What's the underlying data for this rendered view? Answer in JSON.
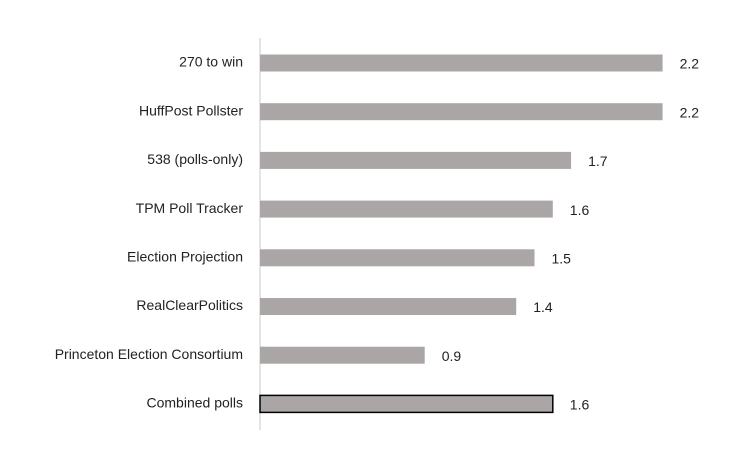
{
  "chart_data": {
    "type": "bar",
    "orientation": "horizontal",
    "categories": [
      "270 to win",
      "HuffPost Pollster",
      "538 (polls-only)",
      "TPM Poll Tracker",
      "Election Projection",
      "RealClearPolitics",
      "Princeton Election Consortium",
      "Combined polls"
    ],
    "values": [
      2.2,
      2.2,
      1.7,
      1.6,
      1.5,
      1.4,
      0.9,
      1.6
    ],
    "color": "#aba6a6",
    "highlight": {
      "index": 7,
      "edgecolor": "#000000"
    }
  }
}
